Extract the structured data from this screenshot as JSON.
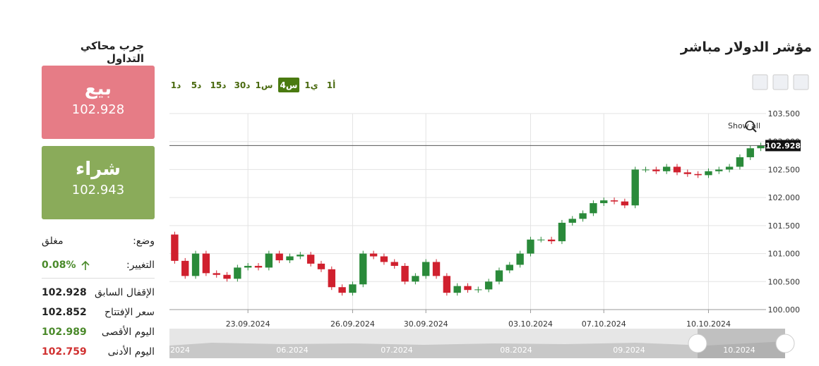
{
  "header": {
    "title": "مؤشر الدولار مباشر"
  },
  "sidebar": {
    "title": "جرب محاكي التداول",
    "sell": {
      "label": "بيع",
      "price": 102.928
    },
    "buy": {
      "label": "شراء",
      "price": 102.943
    },
    "status": {
      "label": "وضع:",
      "value": "مغلق"
    },
    "change": {
      "label": "التغيير:",
      "value": "0.08%"
    },
    "rows": [
      {
        "label": "الإقفال السابق",
        "value": 102.928
      },
      {
        "label": "سعر الإفتتاح",
        "value": 102.852
      },
      {
        "label": "اليوم الأقصى",
        "value": 102.989
      },
      {
        "label": "اليوم الأدنى",
        "value": 102.759
      }
    ]
  },
  "timeframes": [
    "1د",
    "5د",
    "15د",
    "30د",
    "1س",
    "4س",
    "1ي",
    "1أ"
  ],
  "active_timeframe": "4س",
  "chart_data": {
    "type": "candlestick",
    "up_color": "#2a8a3a",
    "down_color": "#d0202e",
    "grid": true,
    "show_all": "Show all",
    "current_price": {
      "value": 102.928,
      "label": "102.928"
    },
    "ylim": [
      100,
      103.5
    ],
    "yticks": [
      {
        "value": 100,
        "label": "100.000"
      },
      {
        "value": 100.5,
        "label": "100.500"
      },
      {
        "value": 101,
        "label": "101.000"
      },
      {
        "value": 101.5,
        "label": "101.500"
      },
      {
        "value": 102,
        "label": "102.000"
      },
      {
        "value": 102.5,
        "label": "102.500"
      },
      {
        "value": 103,
        "label": "103.000"
      },
      {
        "value": 103.5,
        "label": "103.500"
      }
    ],
    "categories": [
      null,
      null,
      null,
      null,
      null,
      null,
      null,
      "23.09.2024",
      null,
      null,
      null,
      null,
      null,
      null,
      null,
      null,
      null,
      "26.09.2024",
      null,
      null,
      null,
      null,
      null,
      null,
      "30.09.2024",
      null,
      null,
      null,
      null,
      null,
      null,
      null,
      null,
      null,
      "03.10.2024",
      null,
      null,
      null,
      null,
      null,
      null,
      "07.10.2024",
      null,
      null,
      null,
      null,
      null,
      null,
      null,
      null,
      null,
      "10.10.2024",
      null,
      null,
      null,
      null,
      null
    ],
    "open": [
      101.34,
      100.87,
      100.6,
      101.0,
      100.65,
      100.62,
      100.55,
      100.75,
      100.78,
      100.75,
      101.0,
      100.88,
      100.95,
      100.98,
      100.82,
      100.72,
      100.4,
      100.3,
      100.45,
      101.0,
      100.95,
      100.85,
      100.78,
      100.5,
      100.6,
      100.85,
      100.6,
      100.3,
      100.42,
      100.35,
      100.36,
      100.5,
      100.7,
      100.8,
      101.0,
      101.25,
      101.25,
      101.22,
      101.55,
      101.62,
      101.72,
      101.9,
      101.95,
      101.93,
      101.86,
      102.5,
      102.5,
      102.47,
      102.55,
      102.45,
      102.42,
      102.4,
      102.47,
      102.5,
      102.55,
      102.72,
      102.88
    ],
    "high": [
      101.39,
      100.92,
      101.05,
      101.05,
      100.7,
      100.67,
      100.8,
      100.83,
      100.83,
      101.05,
      101.05,
      101.0,
      101.03,
      101.03,
      100.87,
      100.77,
      100.45,
      100.5,
      101.05,
      101.05,
      101.0,
      100.9,
      100.83,
      100.65,
      100.9,
      100.9,
      100.65,
      100.47,
      100.47,
      100.41,
      100.55,
      100.75,
      100.85,
      101.05,
      101.3,
      101.3,
      101.3,
      101.6,
      101.67,
      101.77,
      101.95,
      102.0,
      102.0,
      101.98,
      102.55,
      102.55,
      102.55,
      102.6,
      102.6,
      102.5,
      102.47,
      102.52,
      102.55,
      102.6,
      102.77,
      102.93,
      102.98
    ],
    "low": [
      100.82,
      100.55,
      100.55,
      100.6,
      100.57,
      100.5,
      100.5,
      100.7,
      100.7,
      100.7,
      100.83,
      100.83,
      100.9,
      100.77,
      100.67,
      100.35,
      100.25,
      100.25,
      100.4,
      100.9,
      100.8,
      100.73,
      100.45,
      100.45,
      100.55,
      100.55,
      100.25,
      100.25,
      100.3,
      100.3,
      100.31,
      100.45,
      100.65,
      100.75,
      100.95,
      101.2,
      101.17,
      101.17,
      101.5,
      101.57,
      101.67,
      101.85,
      101.88,
      101.81,
      101.81,
      102.45,
      102.42,
      102.42,
      102.4,
      102.37,
      102.35,
      102.35,
      102.42,
      102.45,
      102.5,
      102.67,
      102.83
    ],
    "close": [
      100.87,
      100.6,
      101.0,
      100.65,
      100.62,
      100.55,
      100.75,
      100.78,
      100.75,
      101.0,
      100.88,
      100.95,
      100.98,
      100.82,
      100.72,
      100.4,
      100.3,
      100.45,
      101.0,
      100.95,
      100.85,
      100.78,
      100.5,
      100.6,
      100.85,
      100.6,
      100.3,
      100.42,
      100.35,
      100.36,
      100.5,
      100.7,
      100.8,
      101.0,
      101.25,
      101.25,
      101.22,
      101.55,
      101.62,
      101.72,
      101.9,
      101.95,
      101.93,
      101.86,
      102.5,
      102.5,
      102.47,
      102.55,
      102.45,
      102.42,
      102.4,
      102.47,
      102.5,
      102.55,
      102.72,
      102.88,
      102.93
    ],
    "navigator_labels": [
      "2024",
      "06.2024",
      "07.2024",
      "08.2024",
      "09.2024",
      "10.2024"
    ]
  }
}
